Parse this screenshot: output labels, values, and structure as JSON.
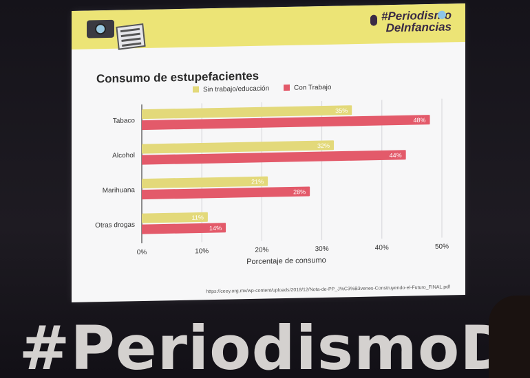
{
  "header": {
    "brand_line1": "#Periodismo",
    "brand_line2": "DeInfancias"
  },
  "stage": {
    "text": "#PeriodismoD"
  },
  "chart_data": {
    "type": "bar",
    "title": "Consumo de estupefacientes",
    "categories": [
      "Tabaco",
      "Alcohol",
      "Marihuana",
      "Otras drogas"
    ],
    "series": [
      {
        "name": "Sin trabajo/educación",
        "color": "#e3d97a",
        "values": [
          35,
          32,
          21,
          11
        ],
        "labels": [
          "35%",
          "32%",
          "21%",
          "11%"
        ]
      },
      {
        "name": "Con Trabajo",
        "color": "#e35a6a",
        "values": [
          48,
          44,
          28,
          14
        ],
        "labels": [
          "48%",
          "44%",
          "28%",
          "14%"
        ]
      }
    ],
    "xlim": [
      0,
      50
    ],
    "xticks": [
      0,
      10,
      20,
      30,
      40,
      50
    ],
    "xtick_labels": [
      "0%",
      "10%",
      "20%",
      "30%",
      "40%",
      "50%"
    ],
    "xlabel": "Porcentaje de consumo",
    "grid": true,
    "legend_position": "top",
    "orientation": "horizontal"
  },
  "source": {
    "text": "https://ceey.org.mx/wp-content/uploads/2018/12/Nota-de-PP_J%C3%B3venes-Construyendo-el-Futuro_FINAL.pdf"
  }
}
